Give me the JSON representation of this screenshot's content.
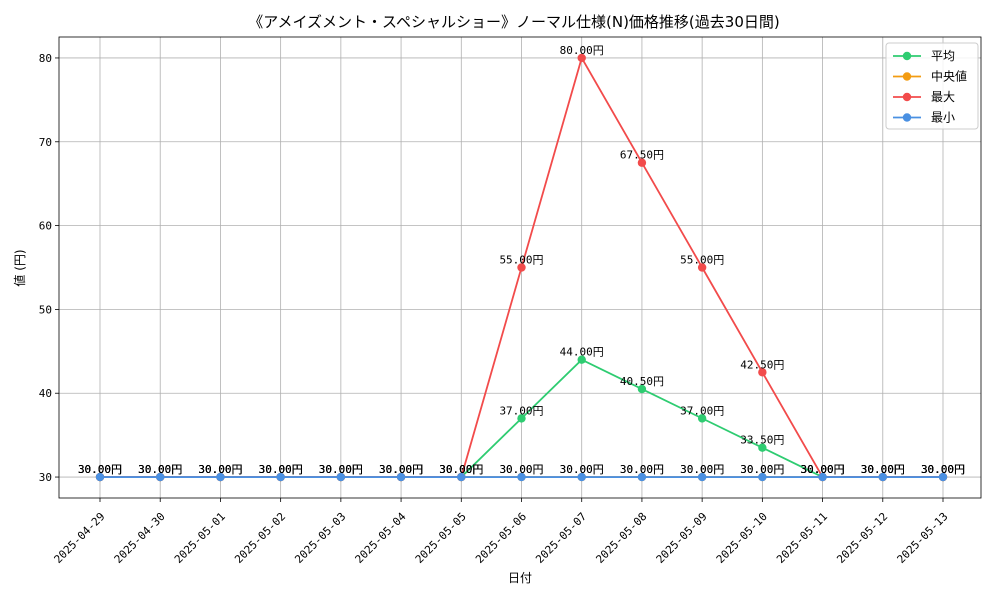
{
  "chart_data": {
    "type": "line",
    "title": "《アメイズメント・スペシャルショー》ノーマル仕様(N)価格推移(過去30日間)",
    "xlabel": "日付",
    "ylabel": "値 (円)",
    "ylim": [
      27.5,
      82.5
    ],
    "yticks": [
      30,
      40,
      50,
      60,
      70,
      80
    ],
    "grid": true,
    "legend_position": "top-right",
    "x": [
      "2025-04-29",
      "2025-04-30",
      "2025-05-01",
      "2025-05-02",
      "2025-05-03",
      "2025-05-04",
      "2025-05-05",
      "2025-05-06",
      "2025-05-07",
      "2025-05-08",
      "2025-05-09",
      "2025-05-10",
      "2025-05-11",
      "2025-05-12",
      "2025-05-13"
    ],
    "series": [
      {
        "name": "平均",
        "color": "#2ecc71",
        "values": [
          30,
          30,
          30,
          30,
          30,
          30,
          30,
          37,
          44,
          40.5,
          37,
          33.5,
          30,
          30,
          30
        ]
      },
      {
        "name": "中央値",
        "color": "#f39c12",
        "values": [
          30,
          30,
          30,
          30,
          30,
          30,
          30,
          30,
          30,
          30,
          30,
          30,
          30,
          30,
          30
        ]
      },
      {
        "name": "最大",
        "color": "#f24b4b",
        "values": [
          30,
          30,
          30,
          30,
          30,
          30,
          30,
          55,
          80,
          67.5,
          55,
          42.5,
          30,
          30,
          30
        ]
      },
      {
        "name": "最小",
        "color": "#4a90e2",
        "values": [
          30,
          30,
          30,
          30,
          30,
          30,
          30,
          30,
          30,
          30,
          30,
          30,
          30,
          30,
          30
        ]
      }
    ],
    "value_suffix": "円"
  }
}
